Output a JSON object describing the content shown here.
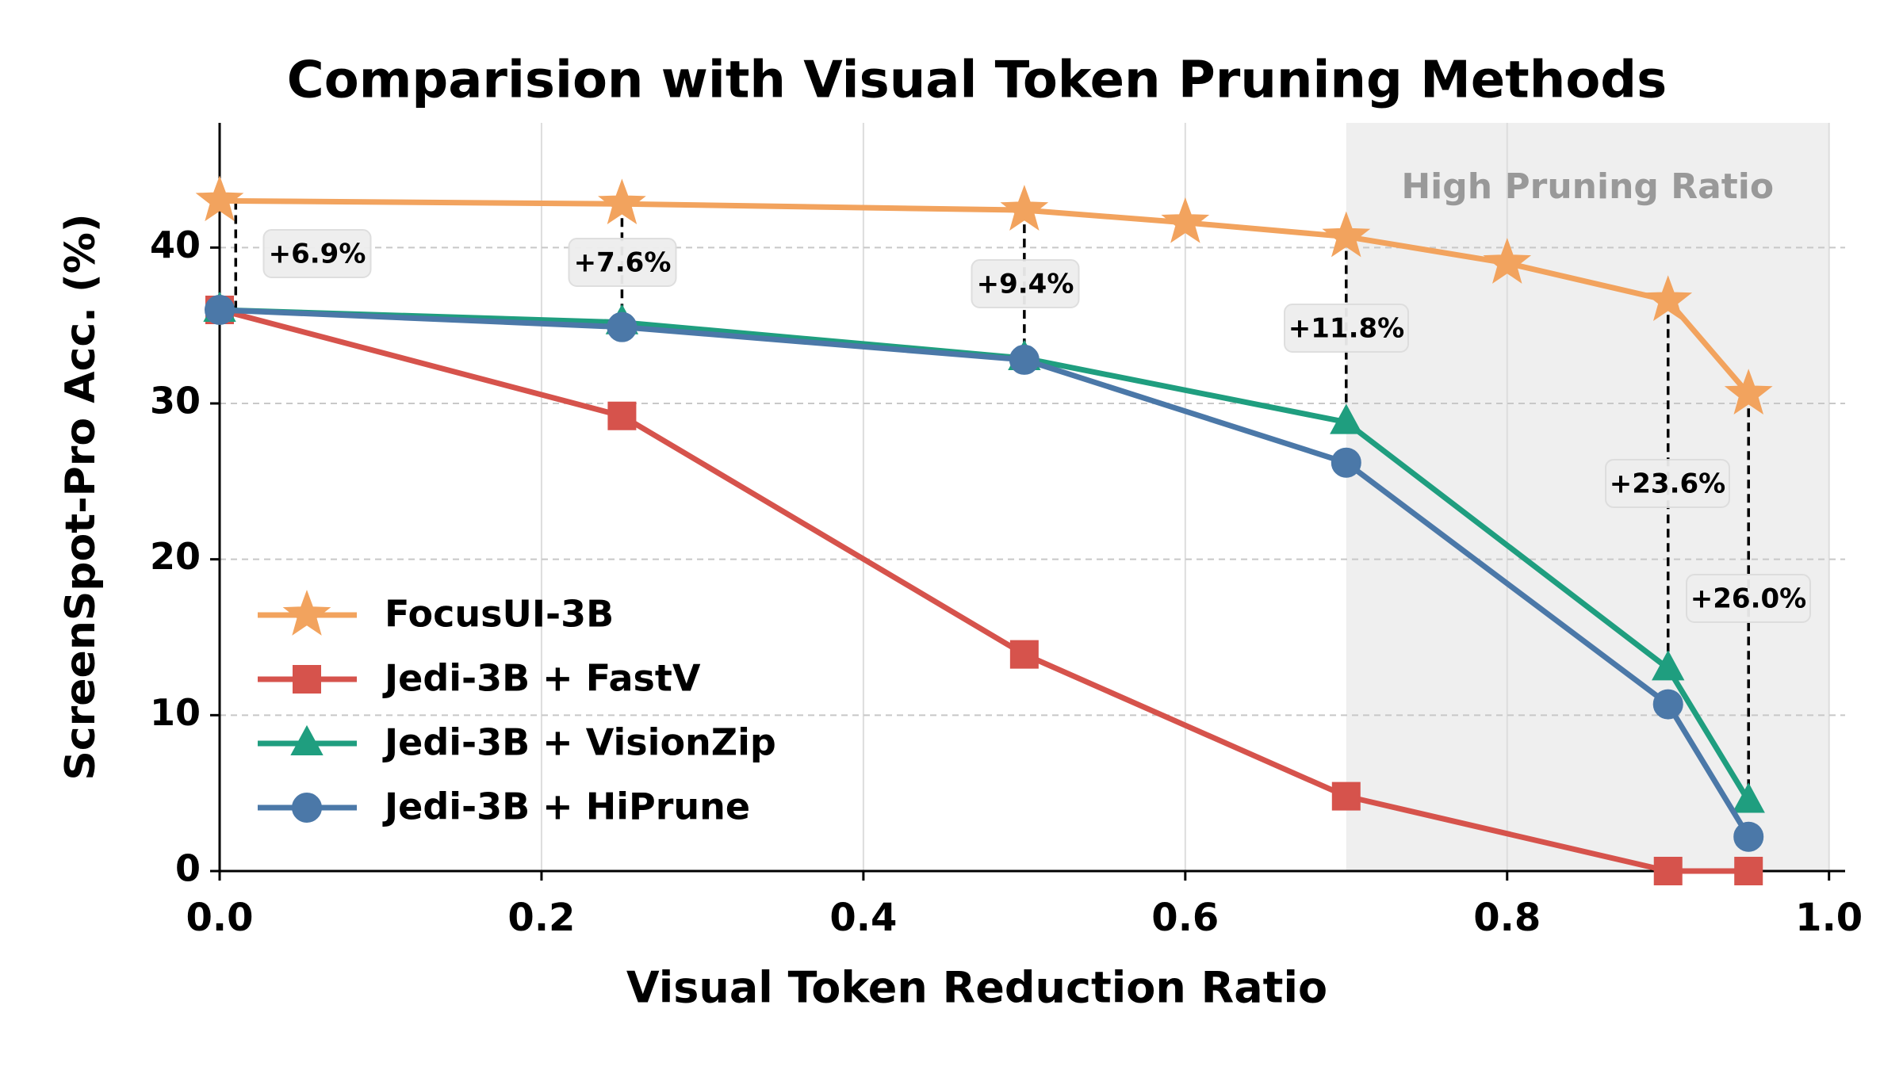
{
  "chart_data": {
    "type": "line",
    "title": "Comparision with Visual Token Pruning Methods",
    "x_label": "Visual Token Reduction Ratio",
    "y_label": "ScreenSpot-Pro Acc. (%)",
    "xlim": [
      0,
      1.01
    ],
    "ylim": [
      0,
      48
    ],
    "xticks": [
      {
        "value": 0,
        "label": "0.0"
      },
      {
        "value": 0.2,
        "label": "0.2"
      },
      {
        "value": 0.4,
        "label": "0.4"
      },
      {
        "value": 0.6,
        "label": "0.6"
      },
      {
        "value": 0.8,
        "label": "0.8"
      },
      {
        "value": 1,
        "label": "1.0"
      }
    ],
    "yticks": [
      0,
      10,
      20,
      30,
      40
    ],
    "grid": true,
    "legend": "lower left",
    "shaded_region": {
      "x": [
        0.7,
        1
      ],
      "label": "High Pruning Ratio",
      "color": "#efefef"
    },
    "series": [
      {
        "name": "FocusUI-3B",
        "color": "#f2a35e",
        "marker": "star",
        "x": [
          0,
          0.25,
          0.5,
          0.6,
          0.7,
          0.8,
          0.9,
          0.95
        ],
        "values": [
          43.0,
          42.8,
          42.4,
          41.6,
          40.7,
          39.0,
          36.6,
          30.6
        ]
      },
      {
        "name": "Jedi-3B + FastV",
        "color": "#d6534c",
        "marker": "square",
        "x": [
          0,
          0.25,
          0.5,
          0.7,
          0.9,
          0.95
        ],
        "values": [
          36.0,
          29.2,
          13.9,
          4.8,
          0,
          0
        ]
      },
      {
        "name": "Jedi-3B + VisionZip",
        "color": "#1f9e7f",
        "marker": "triangle",
        "x": [
          0,
          0.25,
          0.5,
          0.7,
          0.9,
          0.95
        ],
        "values": [
          36.0,
          35.2,
          32.9,
          28.8,
          13.0,
          4.5
        ]
      },
      {
        "name": "Jedi-3B + HiPrune",
        "color": "#4b78a8",
        "marker": "circle",
        "x": [
          0,
          0.25,
          0.5,
          0.7,
          0.9,
          0.95
        ],
        "values": [
          36.0,
          34.9,
          32.8,
          26.2,
          10.7,
          2.2
        ]
      }
    ],
    "annotations": [
      {
        "x": 0.01,
        "label": "+6.9%"
      },
      {
        "x": 0.25,
        "label": "+7.6%"
      },
      {
        "x": 0.5,
        "label": "+9.4%"
      },
      {
        "x": 0.7,
        "label": "+11.8%"
      },
      {
        "x": 0.9,
        "label": "+23.6%"
      },
      {
        "x": 0.95,
        "label": "+26.0%"
      }
    ]
  }
}
